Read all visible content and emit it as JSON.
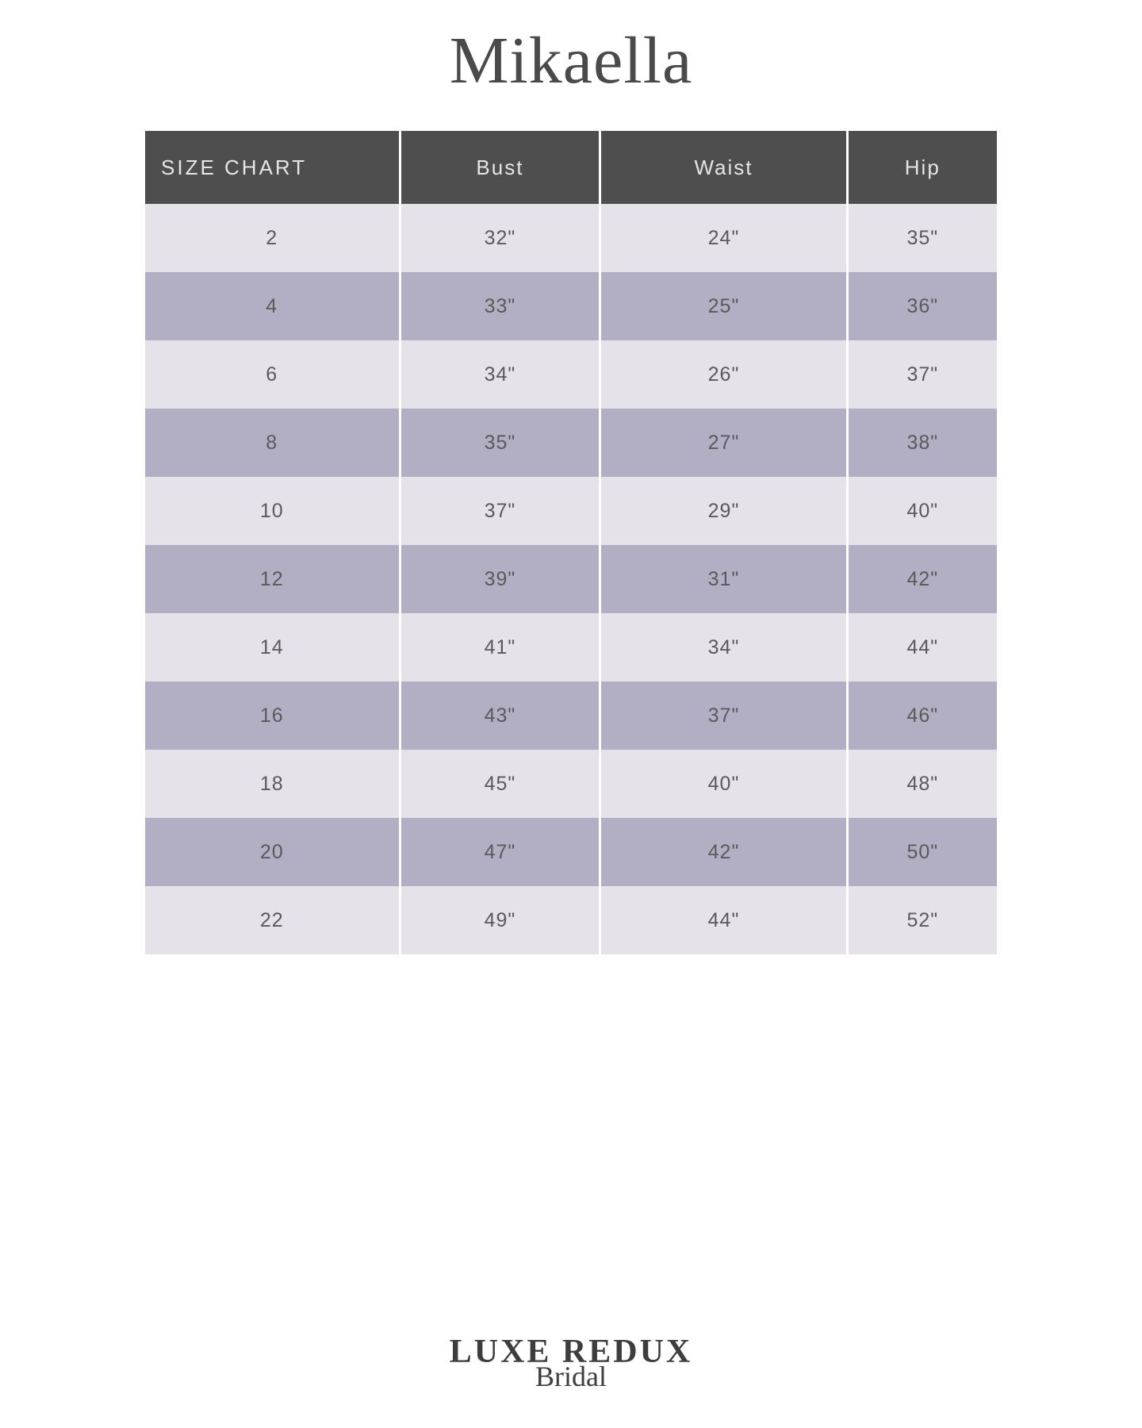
{
  "brand_title": "Mikaella",
  "table": {
    "columns": [
      "SIZE CHART",
      "Bust",
      "Waist",
      "Hip"
    ],
    "rows": [
      [
        "2",
        "32\"",
        "24\"",
        "35\""
      ],
      [
        "4",
        "33\"",
        "25\"",
        "36\""
      ],
      [
        "6",
        "34\"",
        "26\"",
        "37\""
      ],
      [
        "8",
        "35\"",
        "27\"",
        "38\""
      ],
      [
        "10",
        "37\"",
        "29\"",
        "40\""
      ],
      [
        "12",
        "39\"",
        "31\"",
        "42\""
      ],
      [
        "14",
        "41\"",
        "34\"",
        "44\""
      ],
      [
        "16",
        "43\"",
        "37\"",
        "46\""
      ],
      [
        "18",
        "45\"",
        "40\"",
        "48\""
      ],
      [
        "20",
        "47\"",
        "42\"",
        "50\""
      ],
      [
        "22",
        "49\"",
        "44\"",
        "52\""
      ]
    ],
    "header_bg": "#4e4e4e",
    "header_text_color": "#e6e6e6",
    "row_light_bg": "#e5e2ea",
    "row_dark_bg": "#b2aec3",
    "cell_text_color": "#5a5a5a",
    "header_fontsize": 26,
    "cell_fontsize": 25,
    "column_count": 4
  },
  "footer": {
    "line1": "LUXE REDUX",
    "line2": "Bridal"
  },
  "colors": {
    "background": "#ffffff",
    "title_color": "#4a4a4a",
    "footer_color": "#3d3d3d"
  }
}
